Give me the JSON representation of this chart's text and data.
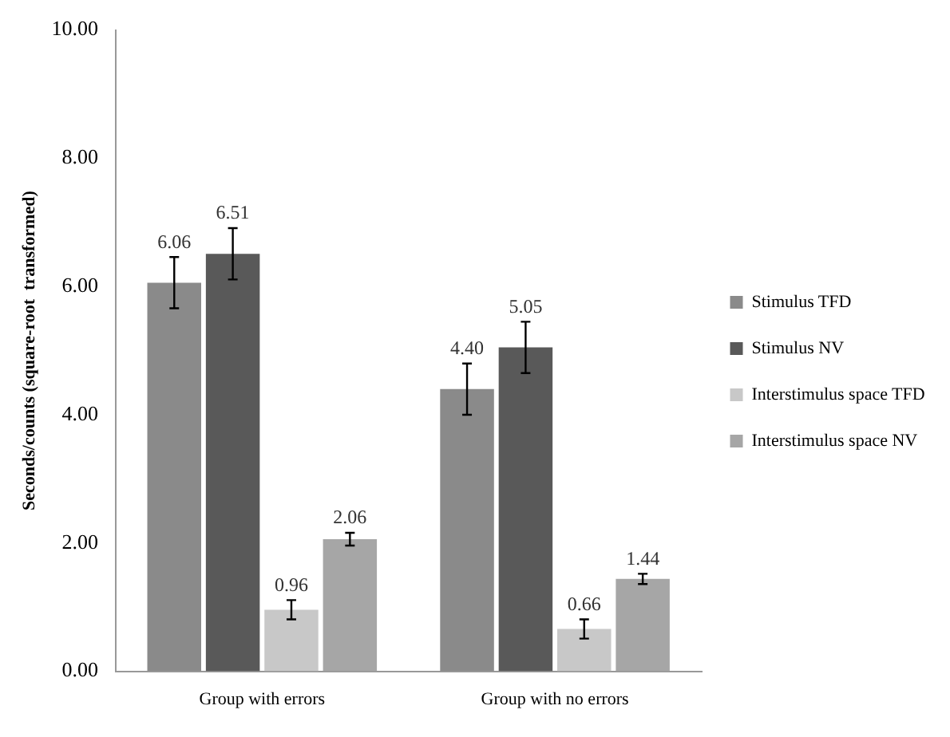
{
  "chart_data": {
    "type": "bar",
    "ylabel": "Seconds/counts (square-root  transformed)",
    "categories": [
      "Group with errors",
      "Group with no errors"
    ],
    "series": [
      {
        "name": "Stimulus TFD",
        "color": "#8a8a8a",
        "values": [
          6.06,
          4.4
        ],
        "value_labels": [
          "6.06",
          "4.40"
        ],
        "errors": [
          0.4,
          0.4
        ]
      },
      {
        "name": "Stimulus NV",
        "color": "#595959",
        "values": [
          6.51,
          5.05
        ],
        "value_labels": [
          "6.51",
          "5.05"
        ],
        "errors": [
          0.4,
          0.4
        ]
      },
      {
        "name": "Interstimulus space TFD",
        "color": "#c8c8c8",
        "values": [
          0.96,
          0.66
        ],
        "value_labels": [
          "0.96",
          "0.66"
        ],
        "errors": [
          0.15,
          0.15
        ]
      },
      {
        "name": "Interstimulus space NV",
        "color": "#a6a6a6",
        "values": [
          2.06,
          1.44
        ],
        "value_labels": [
          "2.06",
          "1.44"
        ],
        "errors": [
          0.1,
          0.08
        ]
      }
    ],
    "ylim": [
      0,
      10
    ],
    "yticks": [
      {
        "value": 0,
        "label": "0.00"
      },
      {
        "value": 2,
        "label": "2.00"
      },
      {
        "value": 4,
        "label": "4.00"
      },
      {
        "value": 6,
        "label": "6.00"
      },
      {
        "value": 8,
        "label": "8.00"
      },
      {
        "value": 10,
        "label": "10.00"
      }
    ],
    "grid": false,
    "legend": "right"
  }
}
